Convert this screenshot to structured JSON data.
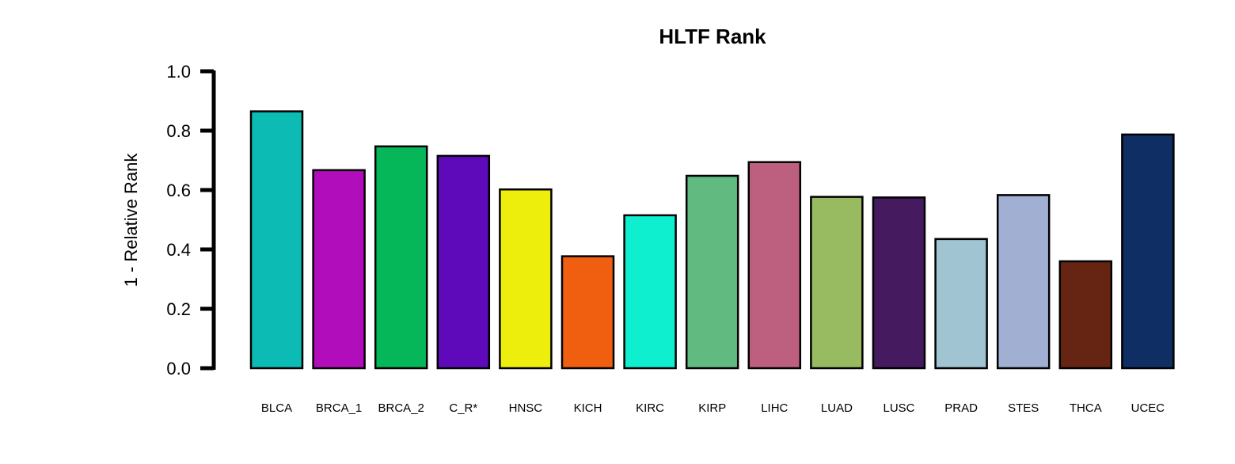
{
  "chart_data": {
    "type": "bar",
    "title": "HLTF Rank",
    "xlabel": "",
    "ylabel": "1 - Relative Rank",
    "ylim": [
      0,
      1.0
    ],
    "yticks": [
      "0.0",
      "0.2",
      "0.4",
      "0.6",
      "0.8",
      "1.0"
    ],
    "grid": false,
    "categories": [
      "BLCA",
      "BRCA_1",
      "BRCA_2",
      "C_R*",
      "HNSC",
      "KICH",
      "KIRC",
      "KIRP",
      "LIHC",
      "LUAD",
      "LUSC",
      "PRAD",
      "STES",
      "THCA",
      "UCEC"
    ],
    "values": [
      0.865,
      0.667,
      0.747,
      0.715,
      0.602,
      0.377,
      0.515,
      0.648,
      0.694,
      0.577,
      0.575,
      0.435,
      0.583,
      0.36,
      0.787
    ],
    "colors": [
      "#0BBBB4",
      "#B20DBB",
      "#06B75A",
      "#5E0ABA",
      "#EEEE0C",
      "#F05E10",
      "#0EEFD0",
      "#61BA7F",
      "#BD607F",
      "#98BB62",
      "#461A5E",
      "#A1C4D2",
      "#A0AFD2",
      "#662412",
      "#0F2E64"
    ]
  }
}
